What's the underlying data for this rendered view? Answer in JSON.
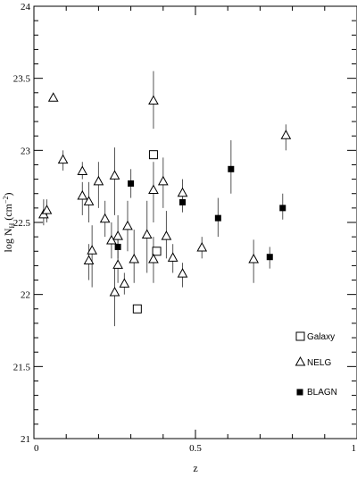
{
  "chart_data": {
    "type": "scatter",
    "title": "",
    "xlabel": "z",
    "ylabel_main": "log N",
    "ylabel_sub": "H",
    "ylabel_unit": "(cm",
    "ylabel_exp": "−2",
    "ylabel_close": ")",
    "xlim": [
      0,
      1
    ],
    "ylim": [
      21,
      24
    ],
    "x_ticks": [
      {
        "value": 0,
        "label": "0"
      },
      {
        "value": 0.5,
        "label": "0.5"
      },
      {
        "value": 1,
        "label": "1"
      }
    ],
    "y_ticks": [
      {
        "value": 21,
        "label": "21"
      },
      {
        "value": 21.5,
        "label": "21.5"
      },
      {
        "value": 22,
        "label": "22"
      },
      {
        "value": 22.5,
        "label": "22.5"
      },
      {
        "value": 23,
        "label": "23"
      },
      {
        "value": 23.5,
        "label": "23.5"
      },
      {
        "value": 24,
        "label": "24"
      }
    ],
    "grid": false,
    "legend_position": "bottom-right",
    "series": [
      {
        "name": "Galaxy",
        "marker": "open-square",
        "points": [
          {
            "x": 0.37,
            "y": 22.97,
            "ylo": 22.97,
            "yhi": 22.97
          },
          {
            "x": 0.38,
            "y": 22.3,
            "ylo": 22.3,
            "yhi": 22.3
          },
          {
            "x": 0.32,
            "y": 21.9,
            "ylo": 21.9,
            "yhi": 21.9
          }
        ]
      },
      {
        "name": "NELG",
        "marker": "open-triangle",
        "points": [
          {
            "x": 0.06,
            "y": 23.36,
            "ylo": 23.36,
            "yhi": 23.36
          },
          {
            "x": 0.03,
            "y": 22.55,
            "ylo": 22.48,
            "yhi": 22.66
          },
          {
            "x": 0.04,
            "y": 22.58,
            "ylo": 22.5,
            "yhi": 22.66
          },
          {
            "x": 0.09,
            "y": 22.93,
            "ylo": 22.86,
            "yhi": 23.0
          },
          {
            "x": 0.15,
            "y": 22.85,
            "ylo": 22.8,
            "yhi": 22.92
          },
          {
            "x": 0.15,
            "y": 22.68,
            "ylo": 22.55,
            "yhi": 22.78
          },
          {
            "x": 0.17,
            "y": 22.64,
            "ylo": 22.5,
            "yhi": 22.78
          },
          {
            "x": 0.17,
            "y": 22.23,
            "ylo": 22.1,
            "yhi": 22.35
          },
          {
            "x": 0.18,
            "y": 22.3,
            "ylo": 22.05,
            "yhi": 22.48
          },
          {
            "x": 0.2,
            "y": 22.78,
            "ylo": 22.6,
            "yhi": 22.92
          },
          {
            "x": 0.22,
            "y": 22.52,
            "ylo": 22.4,
            "yhi": 22.65
          },
          {
            "x": 0.24,
            "y": 22.37,
            "ylo": 22.25,
            "yhi": 22.5
          },
          {
            "x": 0.25,
            "y": 22.01,
            "ylo": 21.78,
            "yhi": 22.18
          },
          {
            "x": 0.25,
            "y": 22.82,
            "ylo": 22.55,
            "yhi": 23.02
          },
          {
            "x": 0.26,
            "y": 22.4,
            "ylo": 22.25,
            "yhi": 22.55
          },
          {
            "x": 0.26,
            "y": 22.2,
            "ylo": 22.08,
            "yhi": 22.3
          },
          {
            "x": 0.28,
            "y": 22.07,
            "ylo": 22.0,
            "yhi": 22.15
          },
          {
            "x": 0.29,
            "y": 22.47,
            "ylo": 22.3,
            "yhi": 22.65
          },
          {
            "x": 0.31,
            "y": 22.24,
            "ylo": 22.08,
            "yhi": 22.45
          },
          {
            "x": 0.35,
            "y": 22.41,
            "ylo": 22.15,
            "yhi": 22.65
          },
          {
            "x": 0.37,
            "y": 22.24,
            "ylo": 22.08,
            "yhi": 22.4
          },
          {
            "x": 0.37,
            "y": 22.72,
            "ylo": 22.5,
            "yhi": 22.92
          },
          {
            "x": 0.37,
            "y": 23.34,
            "ylo": 23.15,
            "yhi": 23.55
          },
          {
            "x": 0.4,
            "y": 22.78,
            "ylo": 22.6,
            "yhi": 22.95
          },
          {
            "x": 0.41,
            "y": 22.4,
            "ylo": 22.25,
            "yhi": 22.58
          },
          {
            "x": 0.43,
            "y": 22.25,
            "ylo": 22.15,
            "yhi": 22.35
          },
          {
            "x": 0.46,
            "y": 22.7,
            "ylo": 22.6,
            "yhi": 22.8
          },
          {
            "x": 0.46,
            "y": 22.14,
            "ylo": 22.05,
            "yhi": 22.22
          },
          {
            "x": 0.52,
            "y": 22.32,
            "ylo": 22.25,
            "yhi": 22.4
          },
          {
            "x": 0.68,
            "y": 22.24,
            "ylo": 22.08,
            "yhi": 22.38
          },
          {
            "x": 0.78,
            "y": 23.1,
            "ylo": 23.0,
            "yhi": 23.18
          }
        ]
      },
      {
        "name": "BLAGN",
        "marker": "filled-square",
        "points": [
          {
            "x": 0.26,
            "y": 22.33,
            "ylo": 22.25,
            "yhi": 22.4
          },
          {
            "x": 0.3,
            "y": 22.77,
            "ylo": 22.67,
            "yhi": 22.87
          },
          {
            "x": 0.46,
            "y": 22.64,
            "ylo": 22.57,
            "yhi": 22.72
          },
          {
            "x": 0.57,
            "y": 22.53,
            "ylo": 22.4,
            "yhi": 22.67
          },
          {
            "x": 0.61,
            "y": 22.87,
            "ylo": 22.7,
            "yhi": 23.07
          },
          {
            "x": 0.73,
            "y": 22.26,
            "ylo": 22.18,
            "yhi": 22.33
          },
          {
            "x": 0.77,
            "y": 22.6,
            "ylo": 22.52,
            "yhi": 22.7
          }
        ]
      }
    ]
  }
}
